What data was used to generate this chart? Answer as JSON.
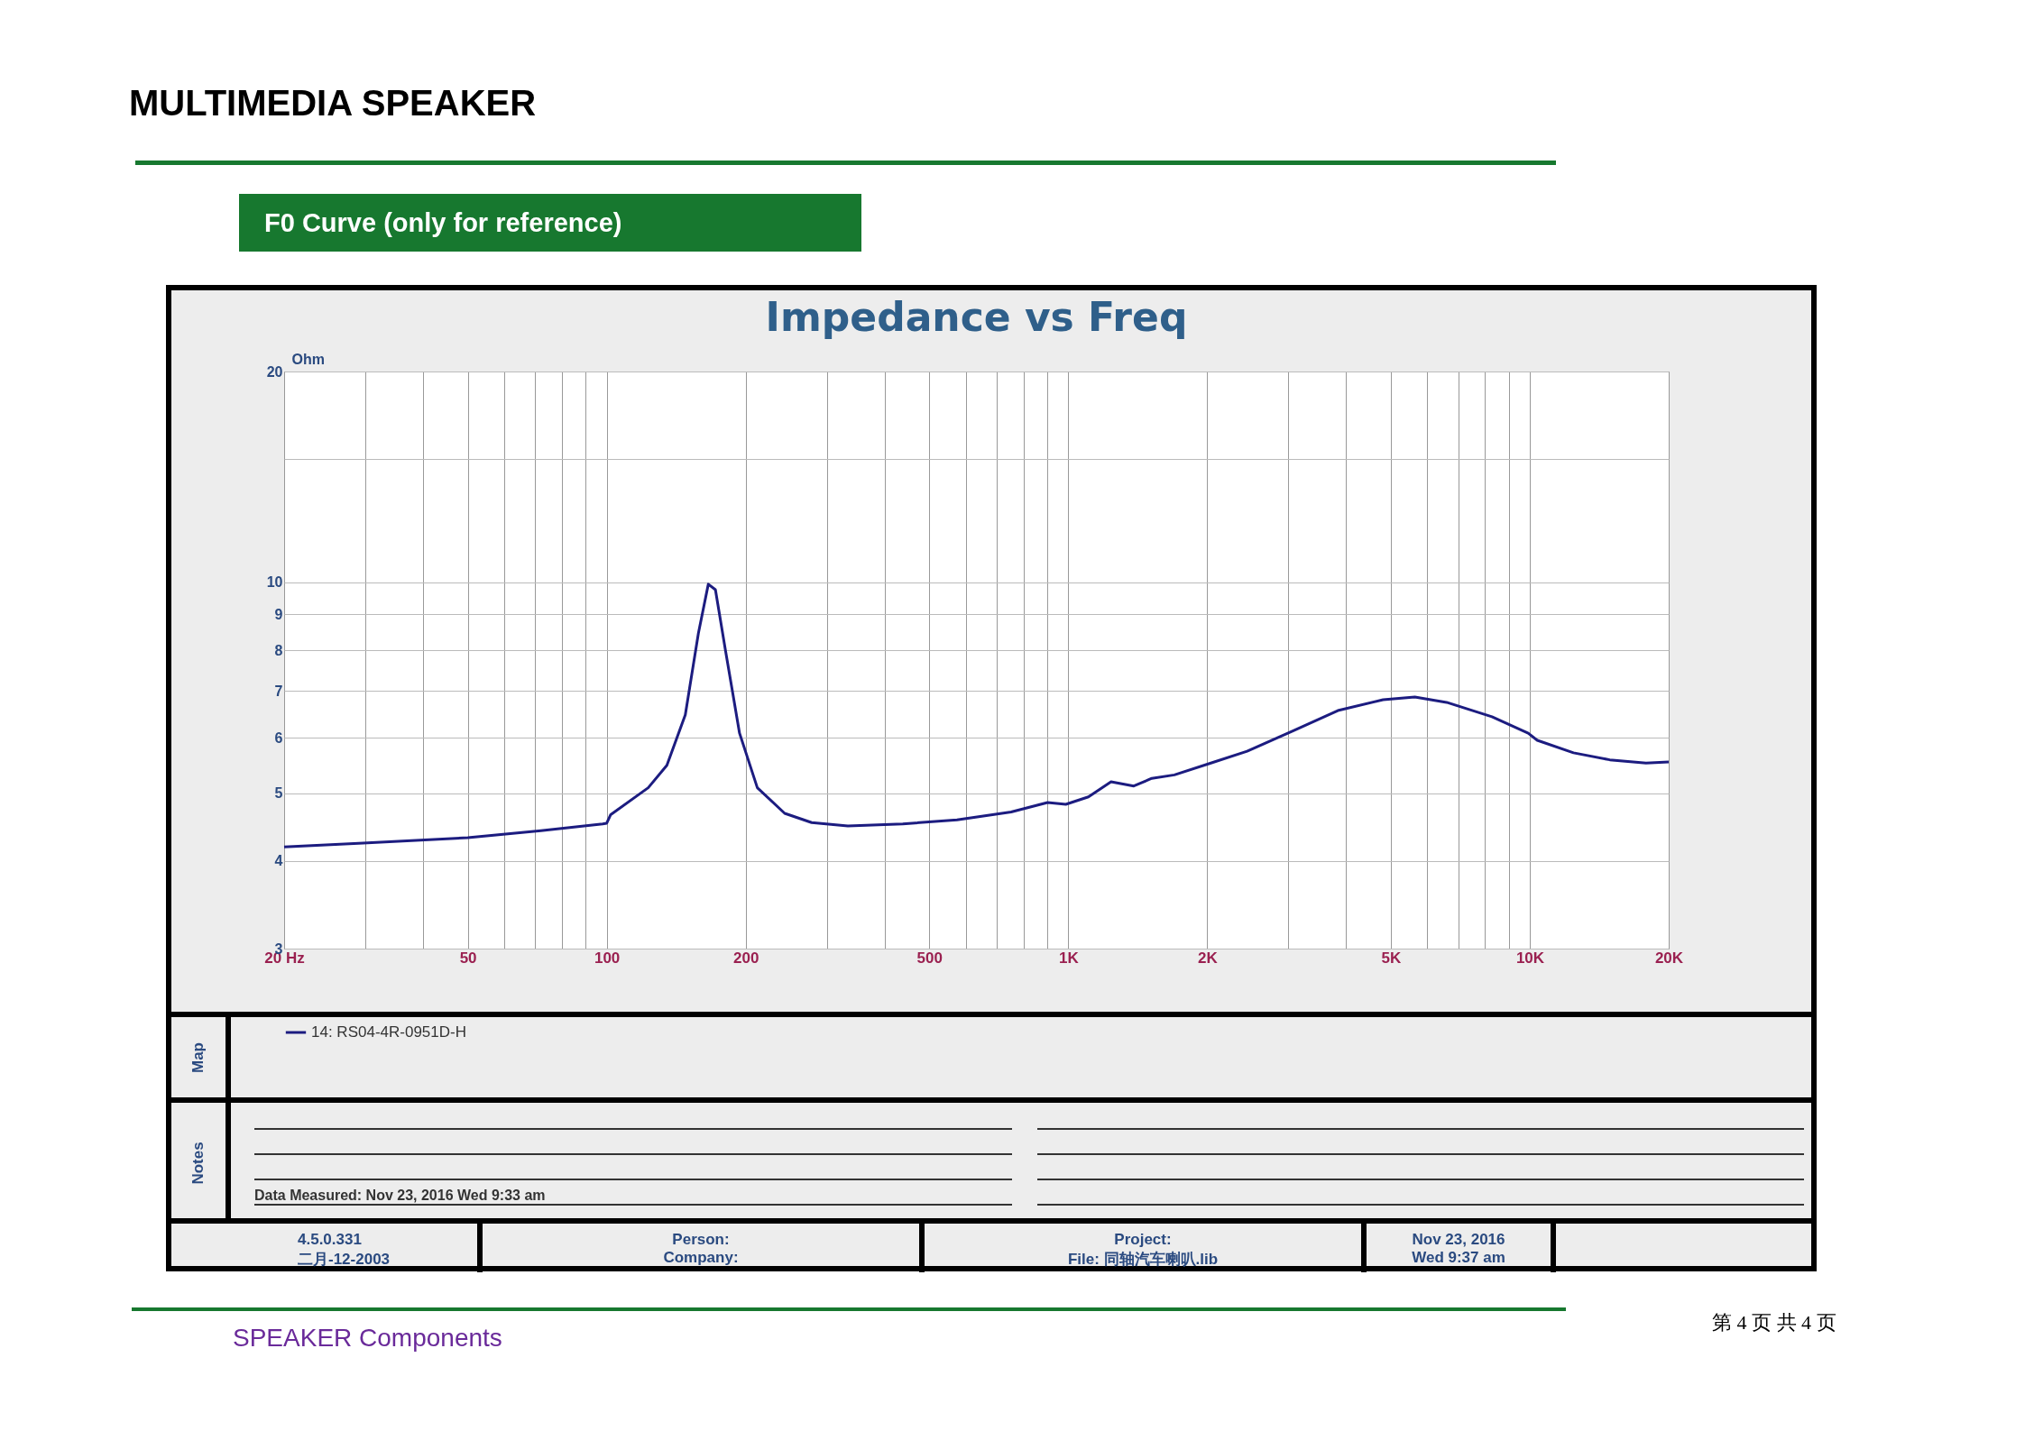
{
  "chart_data": {
    "type": "line",
    "title": "Impedance vs Freq",
    "subtitle": "F0 Curve (only for reference)",
    "ylabel": "Ohm",
    "annotations": [
      "MULTIMEDIA SPEAKER",
      "Map",
      "Notes",
      "Data Measured: Nov 23, 2016  Wed  9:33 am",
      "4.5.0.331",
      "二月-12-2003",
      "Person:",
      "Company:",
      "Project:",
      "File: 同轴汽车喇叭.lib",
      "Nov 23, 2016",
      "Wed  9:37 am",
      "SPEAKER Components",
      "第 4 页 共 4 页"
    ],
    "log": "xy",
    "grid": true,
    "legend": "bottom",
    "xlim": [
      20,
      20000
    ],
    "ylim": [
      3,
      20
    ],
    "xticks": [
      {
        "value": 20,
        "label": "20  Hz"
      },
      {
        "value": 30,
        "label": null
      },
      {
        "value": 40,
        "label": null
      },
      50,
      {
        "value": 60,
        "label": null
      },
      {
        "value": 70,
        "label": null
      },
      {
        "value": 80,
        "label": null
      },
      {
        "value": 90,
        "label": null
      },
      100,
      200,
      {
        "value": 300,
        "label": null
      },
      {
        "value": 400,
        "label": null
      },
      500,
      {
        "value": 600,
        "label": null
      },
      {
        "value": 700,
        "label": null
      },
      {
        "value": 800,
        "label": null
      },
      {
        "value": 900,
        "label": null
      },
      {
        "value": 1000,
        "label": "1K"
      },
      {
        "value": 2000,
        "label": "2K"
      },
      {
        "value": 3000,
        "label": null
      },
      {
        "value": 4000,
        "label": null
      },
      {
        "value": 5000,
        "label": "5K"
      },
      {
        "value": 6000,
        "label": null
      },
      {
        "value": 7000,
        "label": null
      },
      {
        "value": 8000,
        "label": null
      },
      {
        "value": 9000,
        "label": null
      },
      {
        "value": 10000,
        "label": "10K"
      },
      {
        "value": 20000,
        "label": "20K"
      }
    ],
    "yticks": [
      3,
      4,
      5,
      6,
      7,
      8,
      9,
      10,
      {
        "value": 15,
        "label": null
      },
      20
    ],
    "x": [
      20,
      29,
      50,
      72,
      98,
      100,
      102,
      123,
      135,
      148,
      158,
      166,
      172,
      181,
      194,
      212,
      243,
      278,
      333,
      438,
      574,
      752,
      902,
      988,
      1106,
      1238,
      1387,
      1517,
      1698,
      2037,
      2441,
      3059,
      3838,
      4810,
      5636,
      6604,
      8280,
      9923,
      10380,
      12437,
      14905,
      17860,
      20000
    ],
    "series": [
      {
        "name": "14: RS04-4R-0951D-H",
        "color": "#1c1c80",
        "values": [
          4.19,
          4.24,
          4.32,
          4.42,
          4.52,
          4.53,
          4.66,
          5.09,
          5.48,
          6.47,
          8.46,
          9.94,
          9.76,
          7.97,
          6.09,
          5.09,
          4.68,
          4.54,
          4.49,
          4.52,
          4.58,
          4.7,
          4.85,
          4.82,
          4.94,
          5.19,
          5.12,
          5.25,
          5.31,
          5.52,
          5.74,
          6.13,
          6.56,
          6.8,
          6.86,
          6.74,
          6.43,
          6.09,
          5.95,
          5.71,
          5.58,
          5.52,
          5.54
        ]
      }
    ]
  }
}
